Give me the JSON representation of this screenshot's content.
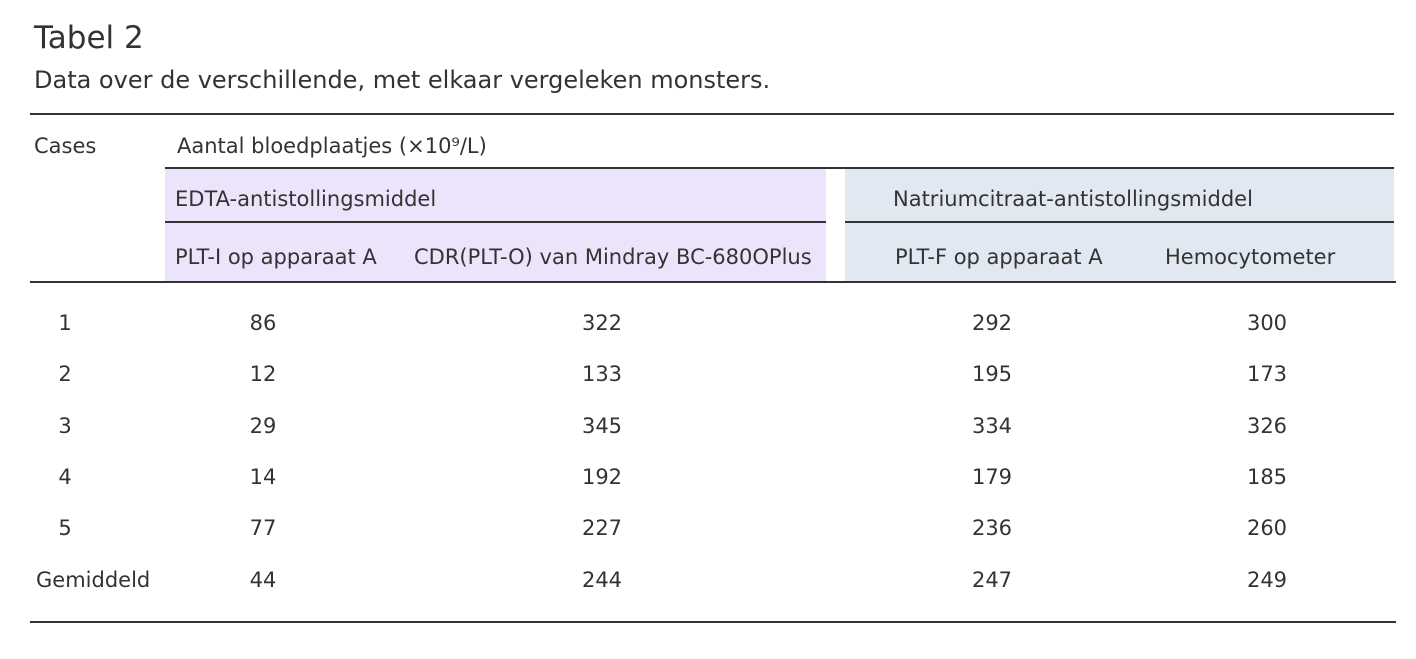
{
  "title": "Tabel 2",
  "subtitle": "Data over de verschillende, met elkaar vergeleken monsters.",
  "table": {
    "corner": "Cases",
    "group_header": "Aantal bloedplaatjes (×10⁹/L)",
    "groups": [
      "EDTA-antistollingsmiddel",
      "Natriumcitraat-antistollingsmiddel"
    ],
    "columns": [
      "PLT-I op apparaat A",
      "CDR(PLT-O) van Mindray BC-680OPlus",
      "PLT-F op apparaat A",
      "Hemocytometer"
    ],
    "rows": [
      [
        "1",
        86,
        322,
        292,
        300
      ],
      [
        "2",
        12,
        133,
        195,
        173
      ],
      [
        "3",
        29,
        345,
        334,
        326
      ],
      [
        "4",
        14,
        192,
        179,
        185
      ],
      [
        "5",
        77,
        227,
        236,
        260
      ],
      [
        "Gemiddeld",
        44,
        244,
        247,
        249
      ]
    ]
  }
}
